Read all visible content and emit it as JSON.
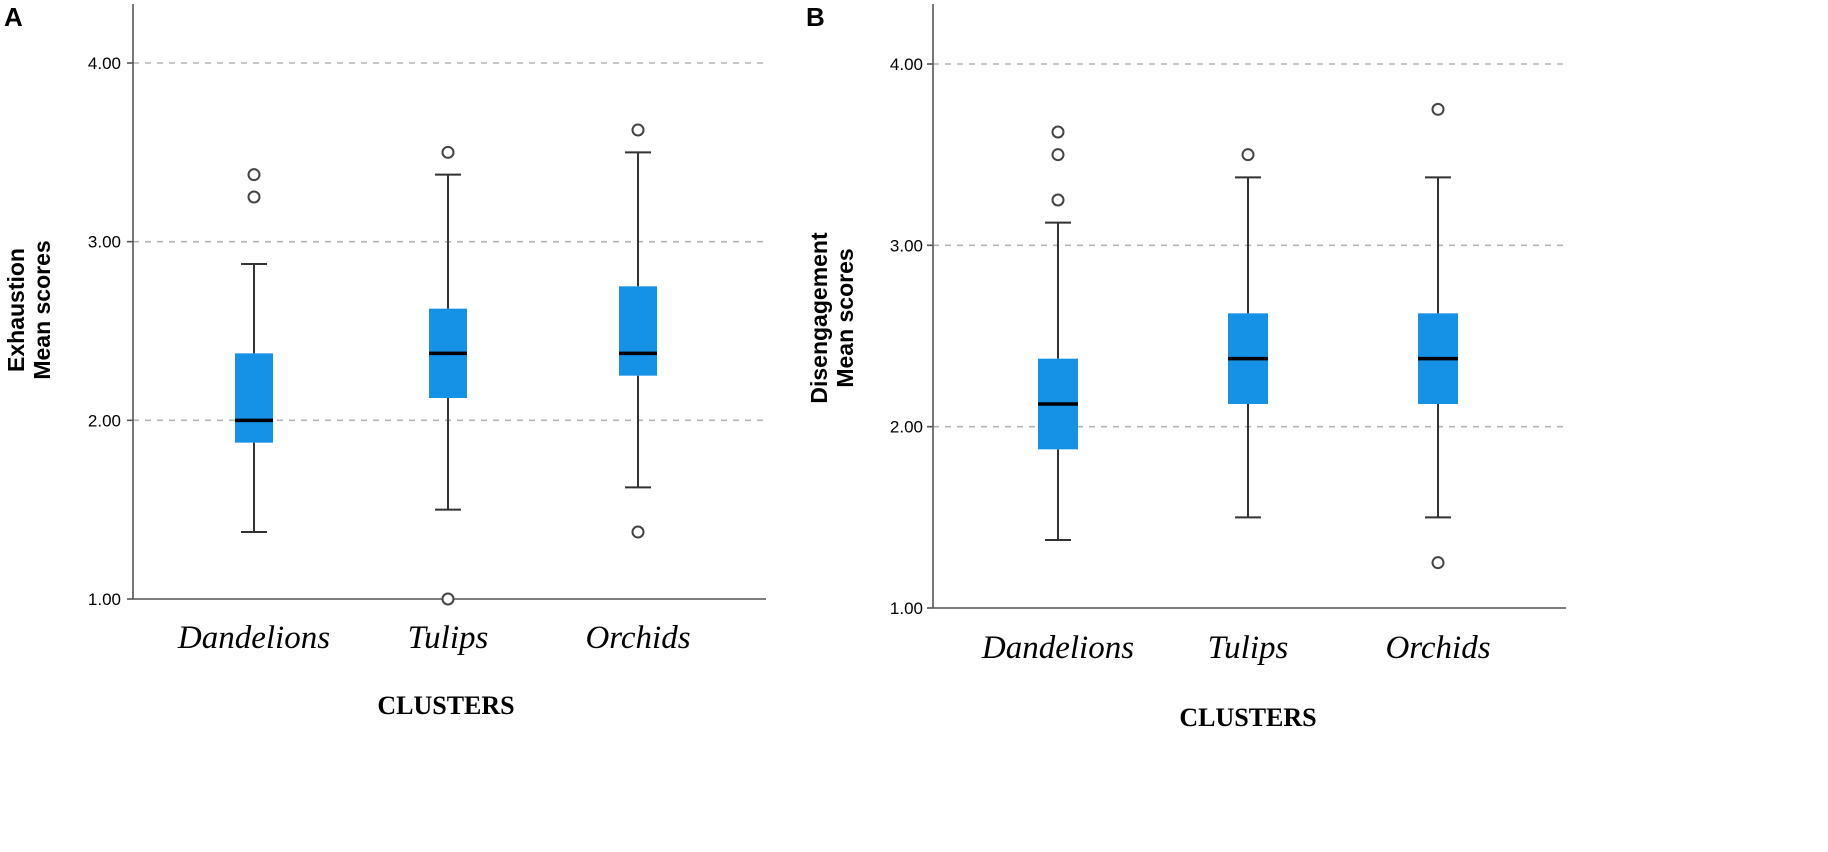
{
  "chart_data": [
    {
      "type": "boxplot",
      "panel_label": "A",
      "ylabel_line1": "Exhaustion",
      "ylabel_line2": "Mean scores",
      "xlabel": "CLUSTERS",
      "ylim": [
        1.0,
        4.33
      ],
      "yticks": [
        1.0,
        2.0,
        3.0,
        4.0
      ],
      "ytick_labels": [
        "1.00",
        "2.00",
        "3.00",
        "4.00"
      ],
      "grid": "horizontal-dashed",
      "box_color": "#1591e6",
      "categories": [
        "Dandelions",
        "Tulips",
        "Orchids"
      ],
      "boxes": [
        {
          "name": "Dandelions",
          "whisker_low": 1.375,
          "q1": 1.875,
          "median": 2.0,
          "q3": 2.375,
          "whisker_high": 2.875,
          "outliers": [
            3.25,
            3.375
          ]
        },
        {
          "name": "Tulips",
          "whisker_low": 1.5,
          "q1": 2.125,
          "median": 2.375,
          "q3": 2.625,
          "whisker_high": 3.375,
          "outliers": [
            1.0,
            3.5
          ]
        },
        {
          "name": "Orchids",
          "whisker_low": 1.625,
          "q1": 2.25,
          "median": 2.375,
          "q3": 2.75,
          "whisker_high": 3.5,
          "outliers": [
            1.375,
            3.625
          ]
        }
      ]
    },
    {
      "type": "boxplot",
      "panel_label": "B",
      "ylabel_line1": "Disengagement",
      "ylabel_line2": "Mean scores",
      "xlabel": "CLUSTERS",
      "ylim": [
        1.0,
        4.33
      ],
      "yticks": [
        1.0,
        2.0,
        3.0,
        4.0
      ],
      "ytick_labels": [
        "1.00",
        "2.00",
        "3.00",
        "4.00"
      ],
      "grid": "horizontal-dashed",
      "box_color": "#1591e6",
      "categories": [
        "Dandelions",
        "Tulips",
        "Orchids"
      ],
      "boxes": [
        {
          "name": "Dandelions",
          "whisker_low": 1.375,
          "q1": 1.875,
          "median": 2.125,
          "q3": 2.375,
          "whisker_high": 3.125,
          "outliers": [
            3.25,
            3.5,
            3.625
          ]
        },
        {
          "name": "Tulips",
          "whisker_low": 1.5,
          "q1": 2.125,
          "median": 2.375,
          "q3": 2.625,
          "whisker_high": 3.375,
          "outliers": [
            3.5
          ]
        },
        {
          "name": "Orchids",
          "whisker_low": 1.5,
          "q1": 2.125,
          "median": 2.375,
          "q3": 2.625,
          "whisker_high": 3.375,
          "outliers": [
            1.25,
            3.75
          ]
        }
      ]
    }
  ]
}
